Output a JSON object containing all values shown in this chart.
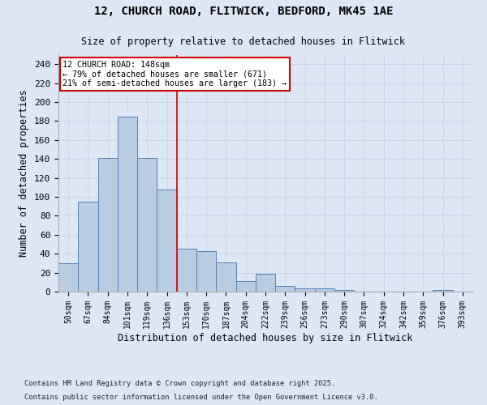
{
  "title_line1": "12, CHURCH ROAD, FLITWICK, BEDFORD, MK45 1AE",
  "title_line2": "Size of property relative to detached houses in Flitwick",
  "xlabel": "Distribution of detached houses by size in Flitwick",
  "ylabel": "Number of detached properties",
  "bar_labels": [
    "50sqm",
    "67sqm",
    "84sqm",
    "101sqm",
    "119sqm",
    "136sqm",
    "153sqm",
    "170sqm",
    "187sqm",
    "204sqm",
    "222sqm",
    "239sqm",
    "256sqm",
    "273sqm",
    "290sqm",
    "307sqm",
    "324sqm",
    "342sqm",
    "359sqm",
    "376sqm",
    "393sqm"
  ],
  "bar_values": [
    30,
    95,
    141,
    185,
    141,
    108,
    45,
    43,
    31,
    11,
    19,
    6,
    3,
    3,
    2,
    0,
    0,
    0,
    0,
    2,
    0
  ],
  "bar_color": "#b8cce4",
  "bar_edge_color": "#5580b0",
  "property_line_index": 6,
  "property_line_label": "12 CHURCH ROAD: 148sqm",
  "annotation_line1": "← 79% of detached houses are smaller (671)",
  "annotation_line2": "21% of semi-detached houses are larger (183) →",
  "annotation_box_color": "#ffffff",
  "annotation_box_edge": "#cc0000",
  "vline_color": "#cc0000",
  "ylim": [
    0,
    250
  ],
  "yticks": [
    0,
    20,
    40,
    60,
    80,
    100,
    120,
    140,
    160,
    180,
    200,
    220,
    240
  ],
  "grid_color": "#c8d4e8",
  "background_color": "#dce6f5",
  "fig_background": "#dce6f5",
  "footnote_line1": "Contains HM Land Registry data © Crown copyright and database right 2025.",
  "footnote_line2": "Contains public sector information licensed under the Open Government Licence v3.0."
}
